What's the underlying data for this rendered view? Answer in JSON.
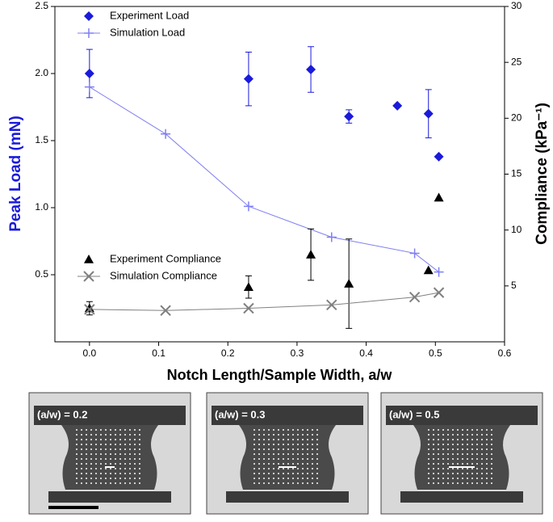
{
  "chart_data": {
    "type": "scatter",
    "xlabel": "Notch Length/Sample Width, a/w",
    "ylabel": "Peak Load (mN)",
    "y2label": "Compliance (kPa⁻¹)",
    "xlim": [
      -0.05,
      0.6
    ],
    "xticks": [
      {
        "value": 0,
        "label": "0.0"
      },
      0.1,
      0.2,
      0.3,
      0.4,
      0.5,
      0.6
    ],
    "ylim": [
      0,
      2.5
    ],
    "yticks": [
      0.5,
      {
        "value": 1,
        "label": "1.0"
      },
      1.5,
      {
        "value": 2,
        "label": "2.0"
      },
      2.5
    ],
    "y2lim": [
      0,
      30
    ],
    "y2ticks": [
      5,
      10,
      15,
      20,
      25,
      30
    ],
    "series": [
      {
        "name": "Experiment Load",
        "color": "#1a1adb",
        "marker": "diamond",
        "line": false,
        "axis": "y",
        "x": [
          0,
          0.23,
          0.32,
          0.375,
          0.445,
          0.49,
          0.505
        ],
        "values": [
          2.0,
          1.96,
          2.03,
          1.68,
          1.76,
          1.7,
          1.38
        ],
        "errors": [
          0.18,
          0.2,
          0.17,
          0.05,
          null,
          0.18,
          null
        ]
      },
      {
        "name": "Simulation Load",
        "color": "#7f7ff5",
        "marker": "plus",
        "line": true,
        "axis": "y",
        "x": [
          0,
          0.11,
          0.23,
          0.35,
          0.47,
          0.505
        ],
        "values": [
          1.9,
          1.55,
          1.01,
          0.78,
          0.66,
          0.52
        ]
      },
      {
        "name": "Experiment Compliance",
        "color": "#000000",
        "marker": "triangle",
        "line": false,
        "axis": "y2",
        "x": [
          0,
          0.23,
          0.32,
          0.375,
          0.49,
          0.505
        ],
        "values": [
          3.0,
          4.9,
          7.8,
          5.2,
          6.4,
          12.9
        ],
        "errors": [
          0.6,
          1.0,
          2.3,
          4.0,
          null,
          null
        ]
      },
      {
        "name": "Simulation Compliance",
        "color": "#808080",
        "marker": "cross",
        "line": true,
        "axis": "y2",
        "x": [
          0,
          0.11,
          0.23,
          0.35,
          0.47,
          0.505
        ],
        "values": [
          2.9,
          2.8,
          3.0,
          3.3,
          4.0,
          4.4
        ]
      }
    ]
  },
  "panels": [
    "(a/w) = 0.2",
    "(a/w) = 0.3",
    "(a/w) = 0.5"
  ]
}
